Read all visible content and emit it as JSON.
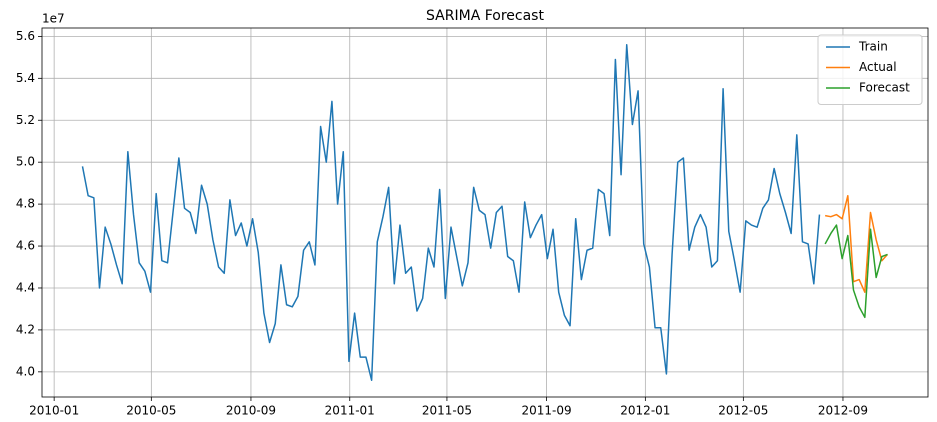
{
  "chart_data": {
    "type": "line",
    "title": "SARIMA Forecast",
    "y_offset_label": "1e7",
    "xlim": [
      "2009-12-17",
      "2012-12-15"
    ],
    "xticks": [
      {
        "value": "2010-01-01",
        "label": "2010-01"
      },
      {
        "value": "2010-05-01",
        "label": "2010-05"
      },
      {
        "value": "2010-09-01",
        "label": "2010-09"
      },
      {
        "value": "2011-01-01",
        "label": "2011-01"
      },
      {
        "value": "2011-05-01",
        "label": "2011-05"
      },
      {
        "value": "2011-09-01",
        "label": "2011-09"
      },
      {
        "value": "2012-01-01",
        "label": "2012-01"
      },
      {
        "value": "2012-05-01",
        "label": "2012-05"
      },
      {
        "value": "2012-09-01",
        "label": "2012-09"
      }
    ],
    "ylim": [
      3.88,
      5.64
    ],
    "yticks": [
      {
        "value": 4.0,
        "label": "4.0"
      },
      4.2,
      4.4,
      4.6,
      4.8,
      {
        "value": 5.0,
        "label": "5.0"
      },
      5.2,
      5.4,
      5.6
    ],
    "grid": true,
    "legend": "upper right",
    "series": [
      {
        "name": "Train",
        "color": "#1f77b4",
        "x": [
          "2010-02-05",
          "2010-02-12",
          "2010-02-19",
          "2010-02-26",
          "2010-03-05",
          "2010-03-12",
          "2010-03-19",
          "2010-03-26",
          "2010-04-02",
          "2010-04-09",
          "2010-04-16",
          "2010-04-23",
          "2010-04-30",
          "2010-05-07",
          "2010-05-14",
          "2010-05-21",
          "2010-05-28",
          "2010-06-04",
          "2010-06-11",
          "2010-06-18",
          "2010-06-25",
          "2010-07-02",
          "2010-07-09",
          "2010-07-16",
          "2010-07-23",
          "2010-07-30",
          "2010-08-06",
          "2010-08-13",
          "2010-08-20",
          "2010-08-27",
          "2010-09-03",
          "2010-09-10",
          "2010-09-17",
          "2010-09-24",
          "2010-10-01",
          "2010-10-08",
          "2010-10-15",
          "2010-10-22",
          "2010-10-29",
          "2010-11-05",
          "2010-11-12",
          "2010-11-19",
          "2010-11-26",
          "2010-12-03",
          "2010-12-10",
          "2010-12-17",
          "2010-12-24",
          "2010-12-31",
          "2011-01-07",
          "2011-01-14",
          "2011-01-21",
          "2011-01-28",
          "2011-02-04",
          "2011-02-11",
          "2011-02-18",
          "2011-02-25",
          "2011-03-04",
          "2011-03-11",
          "2011-03-18",
          "2011-03-25",
          "2011-04-01",
          "2011-04-08",
          "2011-04-15",
          "2011-04-22",
          "2011-04-29",
          "2011-05-06",
          "2011-05-13",
          "2011-05-20",
          "2011-05-27",
          "2011-06-03",
          "2011-06-10",
          "2011-06-17",
          "2011-06-24",
          "2011-07-01",
          "2011-07-08",
          "2011-07-15",
          "2011-07-22",
          "2011-07-29",
          "2011-08-05",
          "2011-08-12",
          "2011-08-19",
          "2011-08-26",
          "2011-09-02",
          "2011-09-09",
          "2011-09-16",
          "2011-09-23",
          "2011-09-30",
          "2011-10-07",
          "2011-10-14",
          "2011-10-21",
          "2011-10-28",
          "2011-11-04",
          "2011-11-11",
          "2011-11-18",
          "2011-11-25",
          "2011-12-02",
          "2011-12-09",
          "2011-12-16",
          "2011-12-23",
          "2011-12-30",
          "2012-01-06",
          "2012-01-13",
          "2012-01-20",
          "2012-01-27",
          "2012-02-03",
          "2012-02-10",
          "2012-02-17",
          "2012-02-24",
          "2012-03-02",
          "2012-03-09",
          "2012-03-16",
          "2012-03-23",
          "2012-03-30",
          "2012-04-06",
          "2012-04-13",
          "2012-04-20",
          "2012-04-27",
          "2012-05-04",
          "2012-05-11",
          "2012-05-18",
          "2012-05-25",
          "2012-06-01",
          "2012-06-08",
          "2012-06-15",
          "2012-06-22",
          "2012-06-29",
          "2012-07-06",
          "2012-07-13",
          "2012-07-20",
          "2012-07-27",
          "2012-08-03"
        ],
        "values": [
          4.98,
          4.84,
          4.83,
          4.4,
          4.69,
          4.61,
          4.51,
          4.42,
          5.05,
          4.75,
          4.52,
          4.48,
          4.38,
          4.85,
          4.53,
          4.52,
          4.77,
          5.02,
          4.78,
          4.76,
          4.66,
          4.89,
          4.8,
          4.63,
          4.5,
          4.47,
          4.82,
          4.65,
          4.71,
          4.6,
          4.73,
          4.57,
          4.28,
          4.14,
          4.23,
          4.51,
          4.32,
          4.31,
          4.36,
          4.58,
          4.62,
          4.51,
          5.17,
          5.0,
          5.29,
          4.8,
          5.05,
          4.05,
          4.28,
          4.07,
          4.07,
          3.96,
          4.62,
          4.74,
          4.88,
          4.42,
          4.7,
          4.47,
          4.5,
          4.29,
          4.35,
          4.59,
          4.5,
          4.87,
          4.35,
          4.69,
          4.55,
          4.41,
          4.52,
          4.88,
          4.77,
          4.75,
          4.59,
          4.76,
          4.79,
          4.55,
          4.53,
          4.38,
          4.81,
          4.64,
          4.7,
          4.75,
          4.54,
          4.68,
          4.38,
          4.27,
          4.22,
          4.73,
          4.44,
          4.58,
          4.59,
          4.87,
          4.85,
          4.65,
          5.49,
          4.94,
          5.56,
          5.18,
          5.34,
          4.61,
          4.5,
          4.21,
          4.21,
          3.99,
          4.56,
          5.0,
          5.02,
          4.58,
          4.69,
          4.75,
          4.69,
          4.5,
          4.53,
          5.35,
          4.67,
          4.53,
          4.38,
          4.72,
          4.7,
          4.69,
          4.78,
          4.82,
          4.97,
          4.85,
          4.76,
          4.66,
          5.13,
          4.62,
          4.61,
          4.42,
          4.75
        ]
      },
      {
        "name": "Actual",
        "color": "#ff7f0e",
        "x": [
          "2012-08-10",
          "2012-08-17",
          "2012-08-24",
          "2012-08-31",
          "2012-09-07",
          "2012-09-14",
          "2012-09-21",
          "2012-09-28",
          "2012-10-05",
          "2012-10-12",
          "2012-10-19",
          "2012-10-26"
        ],
        "values": [
          4.745,
          4.74,
          4.75,
          4.73,
          4.84,
          4.43,
          4.44,
          4.38,
          4.76,
          4.63,
          4.53,
          4.56
        ]
      },
      {
        "name": "Forecast",
        "color": "#2ca02c",
        "x": [
          "2012-08-10",
          "2012-08-17",
          "2012-08-24",
          "2012-08-31",
          "2012-09-07",
          "2012-09-14",
          "2012-09-21",
          "2012-09-28",
          "2012-10-05",
          "2012-10-12",
          "2012-10-19",
          "2012-10-26"
        ],
        "values": [
          4.61,
          4.66,
          4.7,
          4.54,
          4.65,
          4.39,
          4.31,
          4.26,
          4.68,
          4.45,
          4.55,
          4.56
        ]
      }
    ]
  }
}
